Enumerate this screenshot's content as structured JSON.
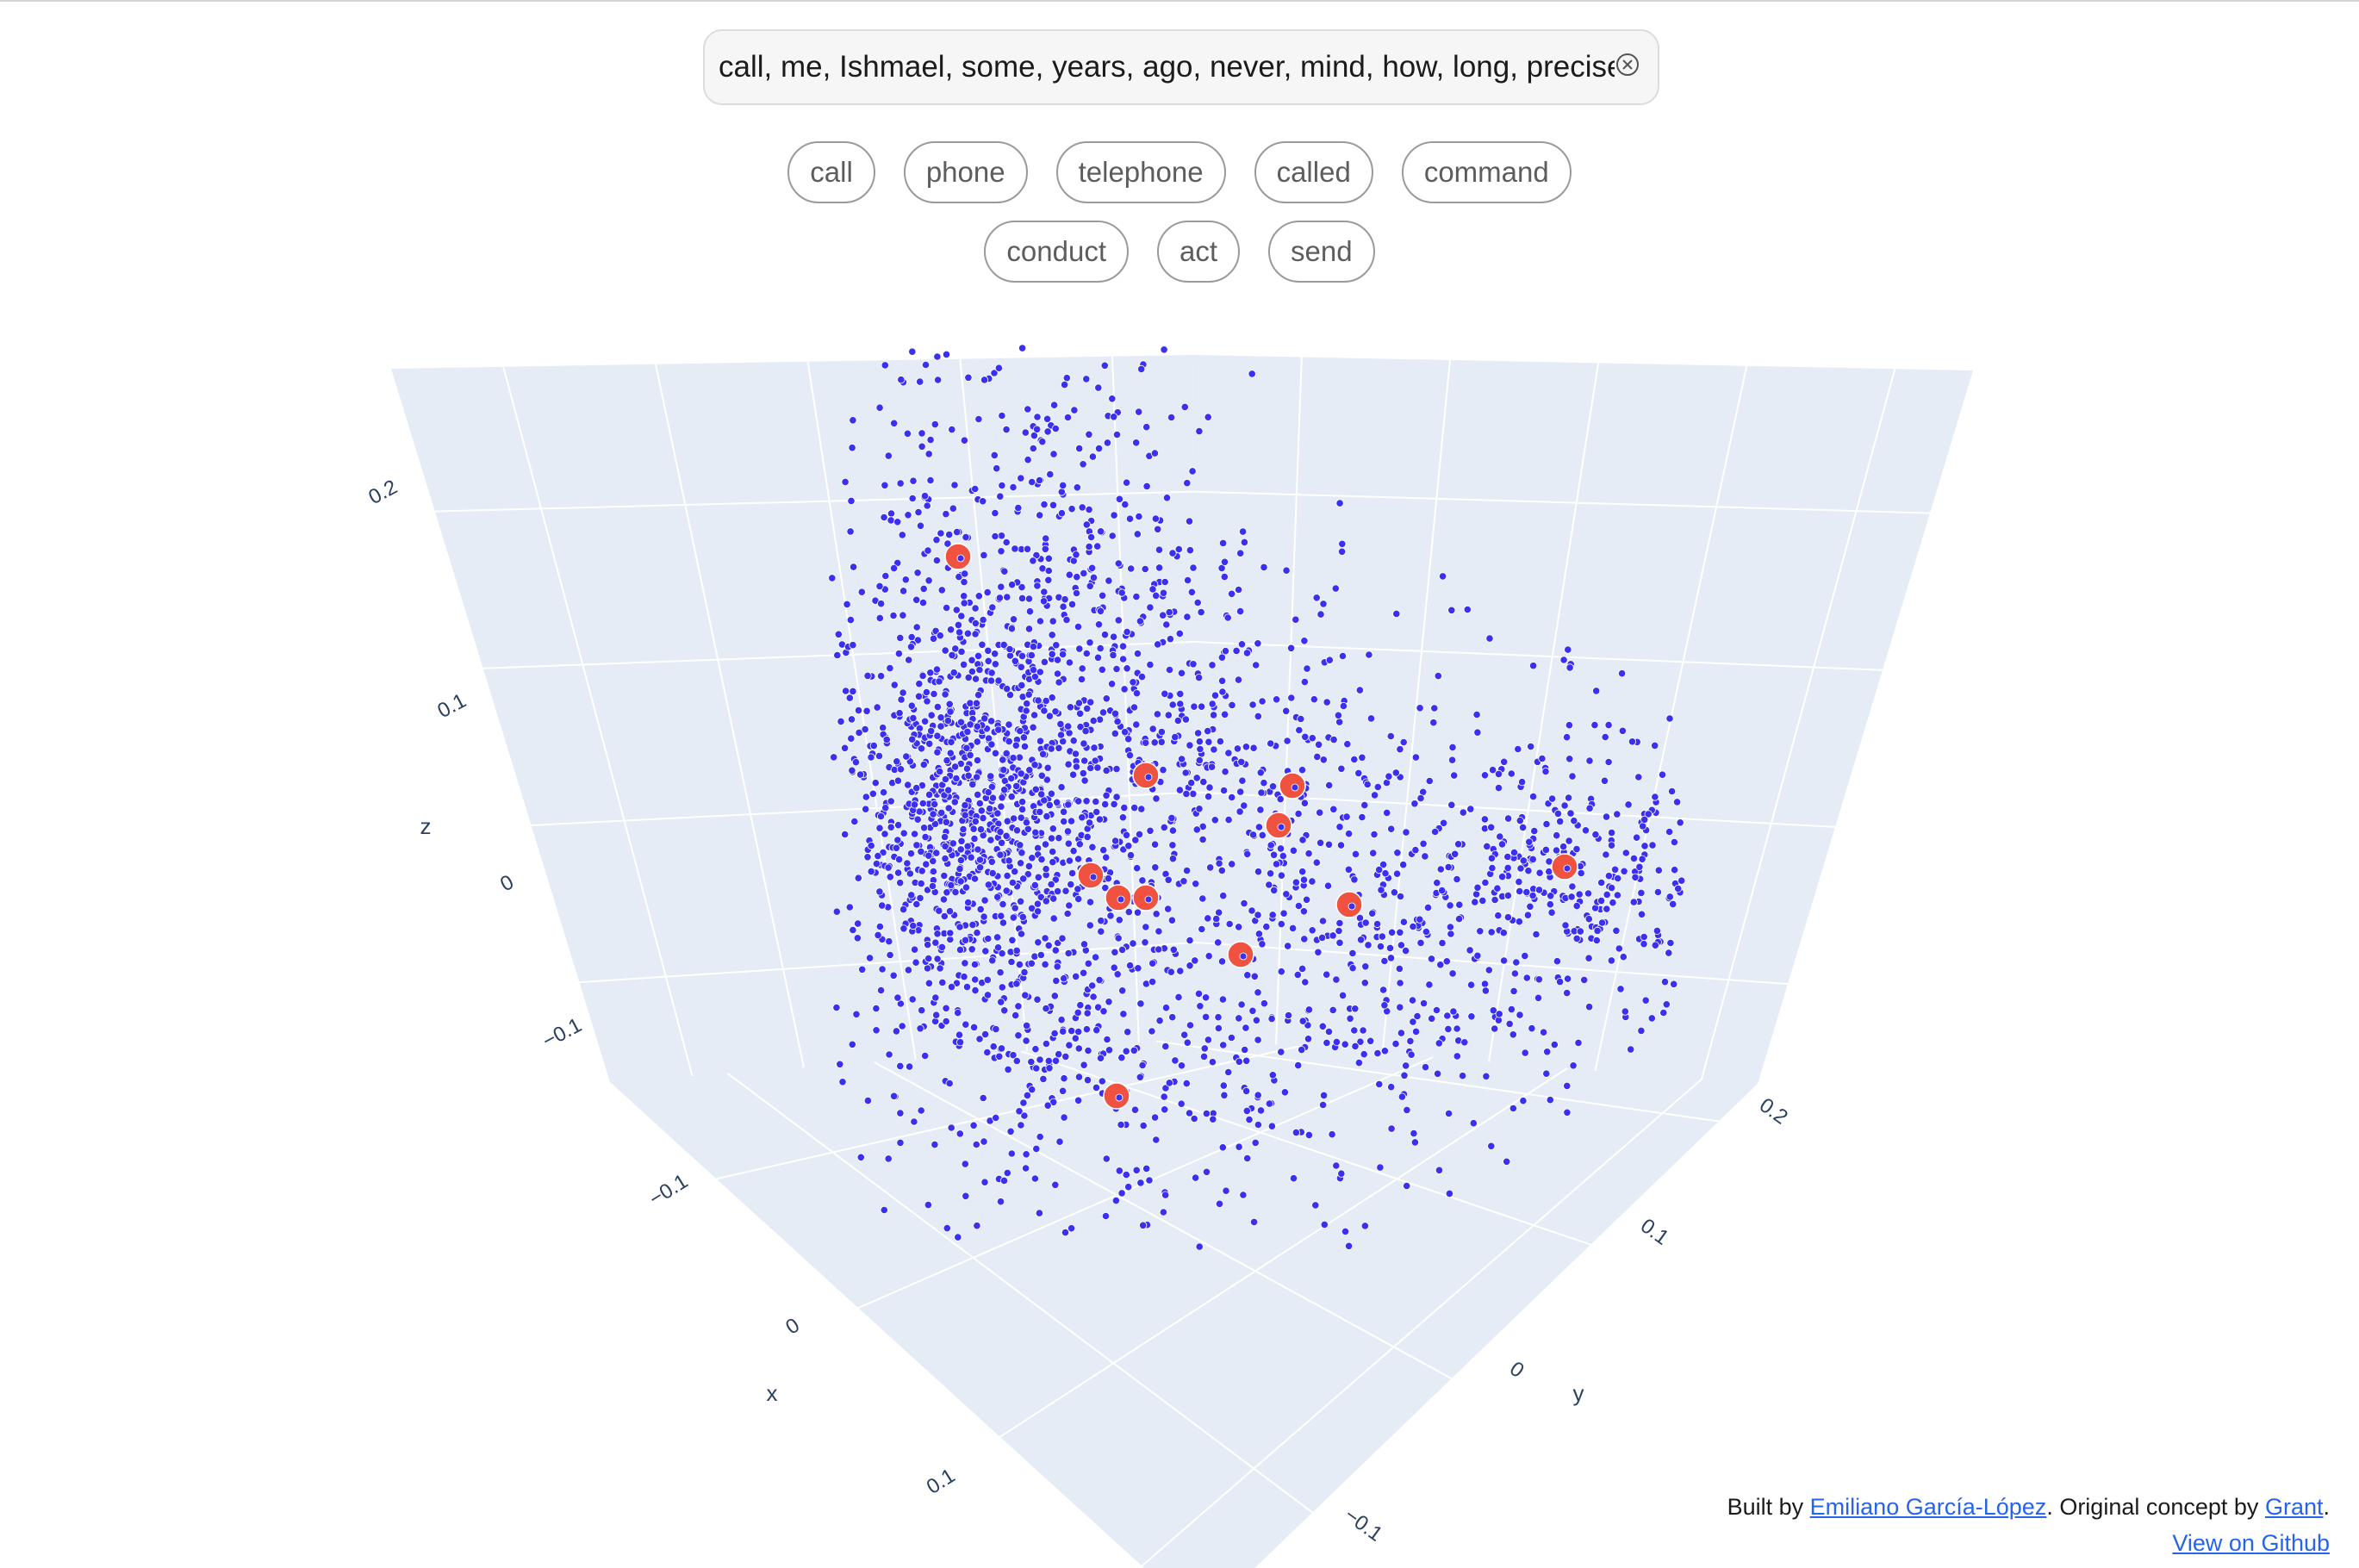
{
  "search": {
    "value": "call, me, Ishmael, some, years, ago, never, mind, how, long, precisely"
  },
  "suggestions": {
    "row1": [
      "call",
      "phone",
      "telephone",
      "called",
      "command"
    ],
    "row2": [
      "conduct",
      "act",
      "send"
    ]
  },
  "credits": {
    "built_by_prefix": "Built by ",
    "author": "Emiliano García-López",
    "middle_text": ". Original concept by ",
    "concept_author": "Grant",
    "end_text": ".",
    "github_link": "View on Github"
  },
  "colors": {
    "scene_background": "#e5ecf6",
    "grid": "#ffffff",
    "point": "#3b2ff0",
    "highlight": "#ef5340",
    "axis_text": "#2a3f5f"
  },
  "chart_data": {
    "type": "scatter",
    "xlabel": "x",
    "ylabel": "y",
    "zlabel": "z",
    "x_ticks": [
      "−0.1",
      "0",
      "0.1"
    ],
    "y_ticks": [
      "−0.1",
      "0",
      "0.1",
      "0.2"
    ],
    "z_ticks": [
      "−0.1",
      "0",
      "0.1",
      "0.2"
    ],
    "grid": true,
    "background_point_count": 2600,
    "highlighted_points_count": 12
  }
}
